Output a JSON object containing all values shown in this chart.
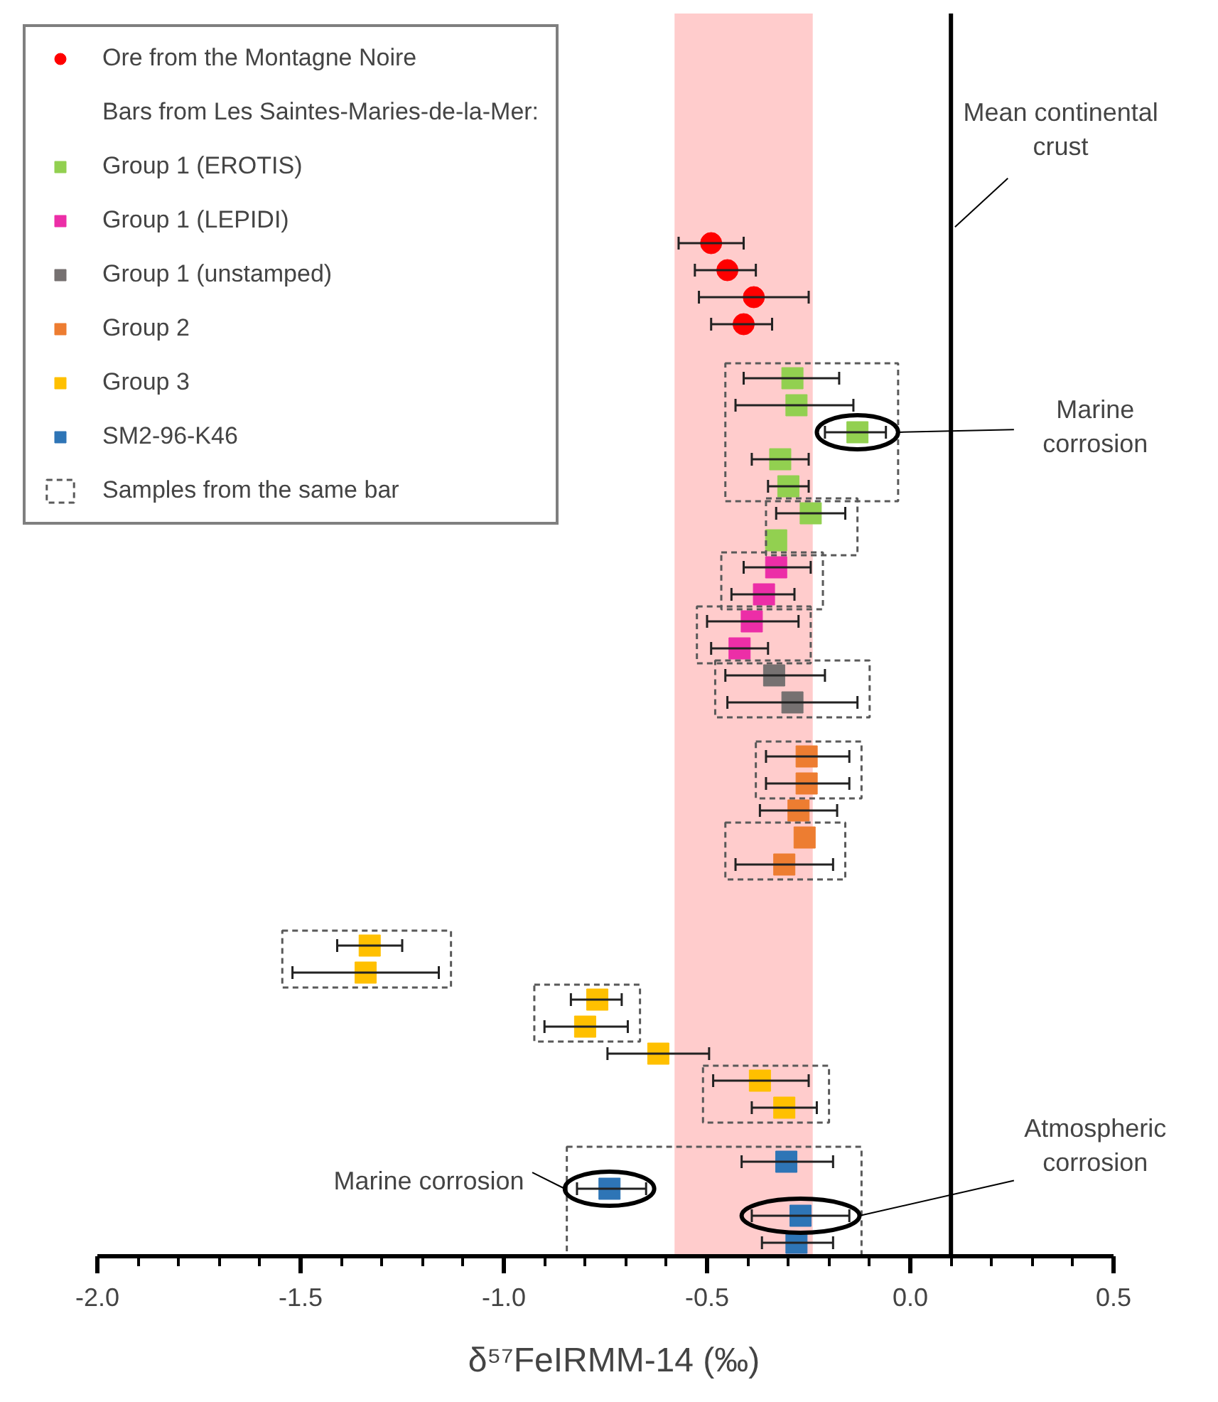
{
  "chart_data": {
    "type": "scatter",
    "orientation": "horizontal",
    "xlabel": "δ⁵⁷FeIRMM-14 (‰)",
    "legend_title": "Bars from Les Saintes-Maries-de-la-Mer:",
    "categories": [
      null,
      null,
      null,
      null,
      null,
      null,
      null,
      null,
      null,
      null,
      null,
      null,
      null,
      null,
      null,
      null,
      null,
      null,
      null,
      null,
      null,
      null,
      null,
      null,
      null,
      null,
      null,
      null,
      null,
      null,
      null,
      null,
      null,
      null,
      null,
      null,
      null,
      null,
      null,
      null,
      null,
      null,
      null,
      null,
      null,
      null
    ],
    "xlim": [
      -2.0,
      0.5
    ],
    "xticks": [
      {
        "value": -2.0,
        "label": "-2.0"
      },
      {
        "value": -1.9,
        "label": null
      },
      {
        "value": -1.8,
        "label": null
      },
      {
        "value": -1.7,
        "label": null
      },
      {
        "value": -1.6,
        "label": null
      },
      {
        "value": -1.5,
        "label": "-1.5"
      },
      {
        "value": -1.4,
        "label": null
      },
      {
        "value": -1.3,
        "label": null
      },
      {
        "value": -1.2,
        "label": null
      },
      {
        "value": -1.1,
        "label": null
      },
      {
        "value": -1.0,
        "label": "-1.0"
      },
      {
        "value": -0.9,
        "label": null
      },
      {
        "value": -0.8,
        "label": null
      },
      {
        "value": -0.7,
        "label": null
      },
      {
        "value": -0.6,
        "label": null
      },
      {
        "value": -0.5,
        "label": "-0.5"
      },
      {
        "value": -0.4,
        "label": null
      },
      {
        "value": -0.3,
        "label": null
      },
      {
        "value": -0.2,
        "label": null
      },
      {
        "value": -0.1,
        "label": null
      },
      {
        "value": 0.0,
        "label": "0.0"
      },
      {
        "value": 0.1,
        "label": null
      },
      {
        "value": 0.2,
        "label": null
      },
      {
        "value": 0.3,
        "label": null
      },
      {
        "value": 0.4,
        "label": null
      },
      {
        "value": 0.5,
        "label": "0.5"
      }
    ],
    "tick_labels": "x",
    "grid": false,
    "legend": "top left",
    "series": [
      {
        "name": "Ore from the Montagne Noire",
        "color": "#ff0000",
        "marker": "circle",
        "values": [
          null,
          null,
          null,
          null,
          null,
          null,
          null,
          null,
          -0.49,
          -0.45,
          -0.385,
          -0.41,
          null,
          null,
          null,
          null,
          null,
          null,
          null,
          null,
          null,
          null,
          null,
          null,
          null,
          null,
          null,
          null,
          null,
          null,
          null,
          null,
          null,
          null,
          null,
          null,
          null,
          null,
          null,
          null,
          null,
          null,
          null,
          null,
          null,
          null
        ],
        "errors": [
          null,
          null,
          null,
          null,
          null,
          null,
          null,
          null,
          [
            -0.57,
            -0.41
          ],
          [
            -0.53,
            -0.38
          ],
          [
            -0.52,
            -0.25
          ],
          [
            -0.49,
            -0.34
          ],
          null,
          null,
          null,
          null,
          null,
          null,
          null,
          null,
          null,
          null,
          null,
          null,
          null,
          null,
          null,
          null,
          null,
          null,
          null,
          null,
          null,
          null,
          null,
          null,
          null,
          null,
          null,
          null,
          null,
          null,
          null,
          null,
          null,
          null
        ]
      },
      {
        "name": "Group 1 (EROTIS)",
        "color": "#92d050",
        "marker": "square",
        "values": [
          null,
          null,
          null,
          null,
          null,
          null,
          null,
          null,
          null,
          null,
          null,
          null,
          null,
          -0.29,
          -0.28,
          -0.13,
          -0.32,
          -0.3,
          -0.245,
          -0.33,
          null,
          null,
          null,
          null,
          null,
          null,
          null,
          null,
          null,
          null,
          null,
          null,
          null,
          null,
          null,
          null,
          null,
          null,
          null,
          null,
          null,
          null,
          null,
          null,
          null,
          null
        ],
        "errors": [
          null,
          null,
          null,
          null,
          null,
          null,
          null,
          null,
          null,
          null,
          null,
          null,
          null,
          [
            -0.41,
            -0.175
          ],
          [
            -0.43,
            -0.14
          ],
          [
            -0.21,
            -0.06
          ],
          [
            -0.39,
            -0.25
          ],
          [
            -0.35,
            -0.25
          ],
          [
            -0.33,
            -0.16
          ],
          null,
          null,
          null,
          null,
          null,
          null,
          null,
          null,
          null,
          null,
          null,
          null,
          null,
          null,
          null,
          null,
          null,
          null,
          null,
          null,
          null,
          null,
          null,
          null,
          null,
          null,
          null
        ]
      },
      {
        "name": "Group 1 (LEPIDI)",
        "color": "#ec2ea7",
        "marker": "square",
        "values": [
          null,
          null,
          null,
          null,
          null,
          null,
          null,
          null,
          null,
          null,
          null,
          null,
          null,
          null,
          null,
          null,
          null,
          null,
          null,
          null,
          -0.33,
          -0.36,
          -0.39,
          -0.42,
          null,
          null,
          null,
          null,
          null,
          null,
          null,
          null,
          null,
          null,
          null,
          null,
          null,
          null,
          null,
          null,
          null,
          null,
          null,
          null,
          null,
          null
        ],
        "errors": [
          null,
          null,
          null,
          null,
          null,
          null,
          null,
          null,
          null,
          null,
          null,
          null,
          null,
          null,
          null,
          null,
          null,
          null,
          null,
          null,
          [
            -0.41,
            -0.245
          ],
          [
            -0.44,
            -0.285
          ],
          [
            -0.5,
            -0.275
          ],
          [
            -0.49,
            -0.35
          ],
          null,
          null,
          null,
          null,
          null,
          null,
          null,
          null,
          null,
          null,
          null,
          null,
          null,
          null,
          null,
          null,
          null,
          null,
          null,
          null,
          null,
          null
        ]
      },
      {
        "name": "Group 1 (unstamped)",
        "color": "#767171",
        "marker": "square",
        "values": [
          null,
          null,
          null,
          null,
          null,
          null,
          null,
          null,
          null,
          null,
          null,
          null,
          null,
          null,
          null,
          null,
          null,
          null,
          null,
          null,
          null,
          null,
          null,
          null,
          -0.335,
          -0.29,
          null,
          null,
          null,
          null,
          null,
          null,
          null,
          null,
          null,
          null,
          null,
          null,
          null,
          null,
          null,
          null,
          null,
          null,
          null,
          null
        ],
        "errors": [
          null,
          null,
          null,
          null,
          null,
          null,
          null,
          null,
          null,
          null,
          null,
          null,
          null,
          null,
          null,
          null,
          null,
          null,
          null,
          null,
          null,
          null,
          null,
          null,
          [
            -0.455,
            -0.21
          ],
          [
            -0.45,
            -0.13
          ],
          null,
          null,
          null,
          null,
          null,
          null,
          null,
          null,
          null,
          null,
          null,
          null,
          null,
          null,
          null,
          null,
          null,
          null,
          null,
          null
        ]
      },
      {
        "name": "Group 2",
        "color": "#ed7d31",
        "marker": "square",
        "values": [
          null,
          null,
          null,
          null,
          null,
          null,
          null,
          null,
          null,
          null,
          null,
          null,
          null,
          null,
          null,
          null,
          null,
          null,
          null,
          null,
          null,
          null,
          null,
          null,
          null,
          null,
          null,
          -0.255,
          -0.255,
          -0.275,
          -0.26,
          -0.31,
          null,
          null,
          null,
          null,
          null,
          null,
          null,
          null,
          null,
          null,
          null,
          null,
          null,
          null
        ],
        "errors": [
          null,
          null,
          null,
          null,
          null,
          null,
          null,
          null,
          null,
          null,
          null,
          null,
          null,
          null,
          null,
          null,
          null,
          null,
          null,
          null,
          null,
          null,
          null,
          null,
          null,
          null,
          null,
          [
            -0.355,
            -0.15
          ],
          [
            -0.355,
            -0.15
          ],
          [
            -0.37,
            -0.18
          ],
          null,
          [
            -0.43,
            -0.19
          ],
          null,
          null,
          null,
          null,
          null,
          null,
          null,
          null,
          null,
          null,
          null,
          null,
          null,
          null
        ]
      },
      {
        "name": "Group 3",
        "color": "#ffc000",
        "marker": "square",
        "values": [
          null,
          null,
          null,
          null,
          null,
          null,
          null,
          null,
          null,
          null,
          null,
          null,
          null,
          null,
          null,
          null,
          null,
          null,
          null,
          null,
          null,
          null,
          null,
          null,
          null,
          null,
          null,
          null,
          null,
          null,
          null,
          null,
          null,
          null,
          -1.33,
          -1.34,
          -0.77,
          -0.8,
          -0.62,
          -0.37,
          -0.31,
          null,
          null,
          null,
          null,
          null
        ],
        "errors": [
          null,
          null,
          null,
          null,
          null,
          null,
          null,
          null,
          null,
          null,
          null,
          null,
          null,
          null,
          null,
          null,
          null,
          null,
          null,
          null,
          null,
          null,
          null,
          null,
          null,
          null,
          null,
          null,
          null,
          null,
          null,
          null,
          null,
          null,
          [
            -1.41,
            -1.25
          ],
          [
            -1.52,
            -1.16
          ],
          [
            -0.835,
            -0.71
          ],
          [
            -0.9,
            -0.695
          ],
          [
            -0.745,
            -0.495
          ],
          [
            -0.485,
            -0.25
          ],
          [
            -0.39,
            -0.23
          ],
          null,
          null,
          null,
          null,
          null
        ]
      },
      {
        "name": "SM2-96-K46",
        "color": "#2e75b6",
        "marker": "square",
        "values": [
          null,
          null,
          null,
          null,
          null,
          null,
          null,
          null,
          null,
          null,
          null,
          null,
          null,
          null,
          null,
          null,
          null,
          null,
          null,
          null,
          null,
          null,
          null,
          null,
          null,
          null,
          null,
          null,
          null,
          null,
          null,
          null,
          null,
          null,
          null,
          null,
          null,
          null,
          null,
          null,
          null,
          null,
          -0.305,
          -0.74,
          -0.27,
          -0.28
        ],
        "errors": [
          null,
          null,
          null,
          null,
          null,
          null,
          null,
          null,
          null,
          null,
          null,
          null,
          null,
          null,
          null,
          null,
          null,
          null,
          null,
          null,
          null,
          null,
          null,
          null,
          null,
          null,
          null,
          null,
          null,
          null,
          null,
          null,
          null,
          null,
          null,
          null,
          null,
          null,
          null,
          null,
          null,
          null,
          [
            -0.415,
            -0.19
          ],
          [
            -0.82,
            -0.65
          ],
          [
            -0.39,
            -0.15
          ],
          [
            -0.365,
            -0.19
          ]
        ]
      },
      {
        "name": "Samples from the same bar",
        "type": "other",
        "color": "#595959",
        "line_style": "dashed",
        "values": [
          null,
          null,
          null,
          null,
          null,
          null,
          null,
          null,
          null,
          null,
          null,
          null,
          null,
          null,
          null,
          null,
          null,
          null,
          null,
          null,
          null,
          null,
          null,
          null,
          null,
          null,
          null,
          null,
          null,
          null,
          null,
          null,
          null,
          null,
          null,
          null,
          null,
          null,
          null,
          null,
          null,
          null,
          null,
          null,
          null,
          null
        ]
      }
    ],
    "bands": [
      {
        "axis": "x",
        "from": -0.58,
        "to": -0.24,
        "color": "#ffcccc"
      }
    ],
    "ref_lines": [
      {
        "axis": "x",
        "value": 0.1,
        "label": "Mean continental crust",
        "color": "#000000"
      }
    ],
    "annotations": [
      "Marine corrosion",
      "Marine corrosion",
      "Atmospheric corrosion"
    ]
  }
}
